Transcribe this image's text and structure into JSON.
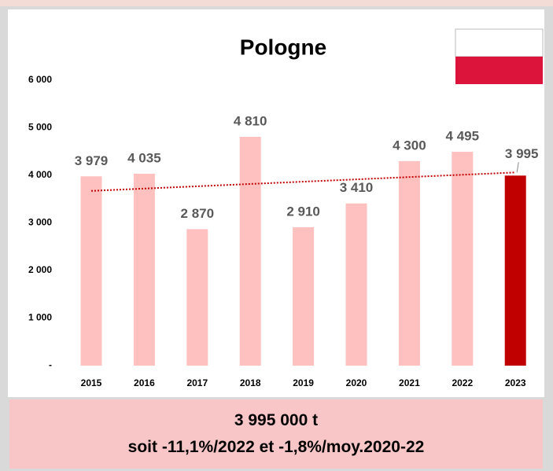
{
  "chart_data": {
    "type": "bar",
    "title": "Pologne",
    "categories": [
      "2015",
      "2016",
      "2017",
      "2018",
      "2019",
      "2020",
      "2021",
      "2022",
      "2023"
    ],
    "values": [
      3979,
      4035,
      2870,
      4810,
      2910,
      3410,
      4300,
      4495,
      3995
    ],
    "value_labels": [
      "3 979",
      "4 035",
      "2 870",
      "4 810",
      "2 910",
      "3 410",
      "4 300",
      "4 495",
      "3 995"
    ],
    "colors": [
      "#ffc0c0",
      "#ffc0c0",
      "#ffc0c0",
      "#ffc0c0",
      "#ffc0c0",
      "#ffc0c0",
      "#ffc0c0",
      "#ffc0c0",
      "#c00000"
    ],
    "ylim": [
      0,
      6000
    ],
    "yticks": [
      {
        "value": 0,
        "label": "-"
      },
      {
        "value": 1000,
        "label": "1 000"
      },
      {
        "value": 2000,
        "label": "2 000"
      },
      {
        "value": 3000,
        "label": "3 000"
      },
      {
        "value": 4000,
        "label": "4 000"
      },
      {
        "value": 5000,
        "label": "5 000"
      },
      {
        "value": 6000,
        "label": "6 000"
      }
    ],
    "grid": false,
    "trendline": true,
    "trendline_color": "#c00000",
    "annotations": [
      "3 995 000 t",
      "soit -11,1%/2022 et -1,8%/moy.2020-22"
    ]
  }
}
